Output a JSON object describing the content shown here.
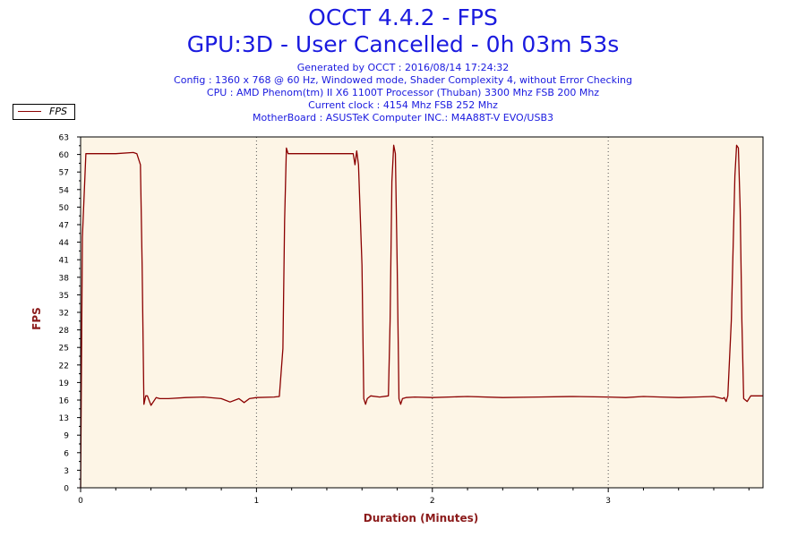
{
  "header": {
    "title": "OCCT 4.4.2 - FPS",
    "subtitle": "GPU:3D - User Cancelled - 0h 03m 53s",
    "info_lines": [
      "Generated by OCCT : 2016/08/14 17:24:32",
      "Config : 1360 x 768 @ 60 Hz, Windowed mode, Shader Complexity 4, without Error Checking",
      "CPU : AMD Phenom(tm) II X6 1100T Processor (Thuban) 3300 Mhz FSB 200 Mhz",
      "Current clock : 4154 Mhz FSB 252 Mhz",
      "MotherBoard : ASUSTeK Computer INC.: M4A88T-V EVO/USB3"
    ]
  },
  "legend": {
    "label": "FPS"
  },
  "colors": {
    "line": "#8b0000",
    "plot_bg": "#fdf5e6",
    "title": "#1a1adf",
    "axis_label": "#8b1a1a"
  },
  "chart_data": {
    "type": "line",
    "title": "OCCT 4.4.2 - FPS",
    "xlabel": "Duration (Minutes)",
    "ylabel": "FPS",
    "xlim": [
      0,
      3.88
    ],
    "ylim": [
      0,
      63
    ],
    "x_ticks": [
      "0",
      "1",
      "2",
      "3"
    ],
    "y_ticks": [
      "0",
      "3",
      "6",
      "9",
      "13",
      "16",
      "19",
      "22",
      "25",
      "28",
      "32",
      "35",
      "38",
      "41",
      "44",
      "47",
      "50",
      "54",
      "57",
      "60",
      "63"
    ],
    "grid": "vertical dotted at each minute",
    "legend_position": "top-left",
    "series": [
      {
        "name": "FPS",
        "x": [
          0,
          0.01,
          0.03,
          0.1,
          0.2,
          0.3,
          0.32,
          0.34,
          0.35,
          0.36,
          0.37,
          0.38,
          0.4,
          0.43,
          0.45,
          0.5,
          0.6,
          0.7,
          0.8,
          0.85,
          0.9,
          0.93,
          0.96,
          1.0,
          1.1,
          1.13,
          1.15,
          1.16,
          1.17,
          1.18,
          1.2,
          1.3,
          1.4,
          1.55,
          1.56,
          1.57,
          1.58,
          1.6,
          1.61,
          1.62,
          1.63,
          1.65,
          1.7,
          1.75,
          1.76,
          1.77,
          1.78,
          1.79,
          1.8,
          1.81,
          1.82,
          1.83,
          1.85,
          1.9,
          2.0,
          2.2,
          2.4,
          2.6,
          2.8,
          3.0,
          3.1,
          3.2,
          3.3,
          3.4,
          3.5,
          3.6,
          3.65,
          3.66,
          3.67,
          3.68,
          3.7,
          3.72,
          3.73,
          3.74,
          3.75,
          3.76,
          3.77,
          3.79,
          3.81,
          3.88
        ],
        "values": [
          0,
          45,
          60,
          60,
          60,
          60.2,
          60,
          58,
          40,
          15,
          16.5,
          16.5,
          14.8,
          16.2,
          16,
          16,
          16.2,
          16.3,
          16,
          15.4,
          16,
          15.3,
          16,
          16.2,
          16.3,
          16.4,
          25,
          48,
          61,
          60,
          60,
          60,
          60,
          60,
          58,
          60.5,
          58,
          40,
          16,
          15,
          16,
          16.5,
          16.3,
          16.5,
          30,
          55,
          61.5,
          60,
          40,
          16,
          15,
          16,
          16.2,
          16.3,
          16.2,
          16.4,
          16.2,
          16.3,
          16.4,
          16.3,
          16.2,
          16.4,
          16.3,
          16.2,
          16.3,
          16.4,
          16,
          16.2,
          15.5,
          16.5,
          30,
          56,
          61.5,
          61,
          50,
          30,
          16,
          15.5,
          16.5,
          16.5
        ]
      }
    ]
  }
}
